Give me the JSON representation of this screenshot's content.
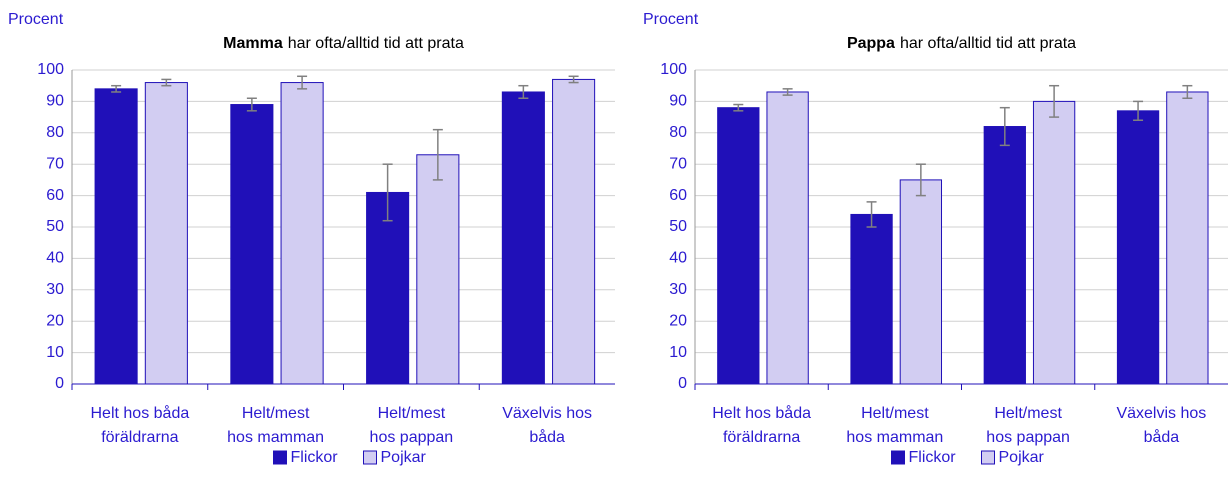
{
  "chart_data": [
    {
      "type": "bar",
      "y_label": "Procent",
      "title_bold": "Mamma",
      "title": "har ofta/alltid tid att prata",
      "categories": [
        [
          "Helt hos båda",
          "föräldrarna"
        ],
        [
          "Helt/mest",
          "hos mamman"
        ],
        [
          "Helt/mest",
          "hos pappan"
        ],
        [
          "Växelvis hos",
          "båda"
        ]
      ],
      "series": [
        {
          "name": "Flickor",
          "color": "#2010b8",
          "values": [
            94,
            89,
            61,
            93
          ],
          "errors": [
            1,
            2,
            9,
            2
          ]
        },
        {
          "name": "Pojkar",
          "color": "#d2cdf2",
          "values": [
            96,
            96,
            73,
            97
          ],
          "errors": [
            1,
            2,
            8,
            1
          ]
        }
      ],
      "ylim": [
        0,
        100
      ],
      "yticks": [
        0,
        10,
        20,
        30,
        40,
        50,
        60,
        70,
        80,
        90,
        100
      ],
      "grid": true,
      "legend": "bottom"
    },
    {
      "type": "bar",
      "y_label": "Procent",
      "title_bold": "Pappa",
      "title": "har ofta/alltid tid att prata",
      "categories": [
        [
          "Helt hos båda",
          "föräldrarna"
        ],
        [
          "Helt/mest",
          "hos mamman"
        ],
        [
          "Helt/mest",
          "hos pappan"
        ],
        [
          "Växelvis hos",
          "båda"
        ]
      ],
      "series": [
        {
          "name": "Flickor",
          "color": "#2010b8",
          "values": [
            88,
            54,
            82,
            87
          ],
          "errors": [
            1,
            4,
            6,
            3
          ]
        },
        {
          "name": "Pojkar",
          "color": "#d2cdf2",
          "values": [
            93,
            65,
            90,
            93
          ],
          "errors": [
            1,
            5,
            5,
            2
          ]
        }
      ],
      "ylim": [
        0,
        100
      ],
      "yticks": [
        0,
        10,
        20,
        30,
        40,
        50,
        60,
        70,
        80,
        90,
        100
      ],
      "grid": true,
      "legend": "bottom"
    }
  ]
}
